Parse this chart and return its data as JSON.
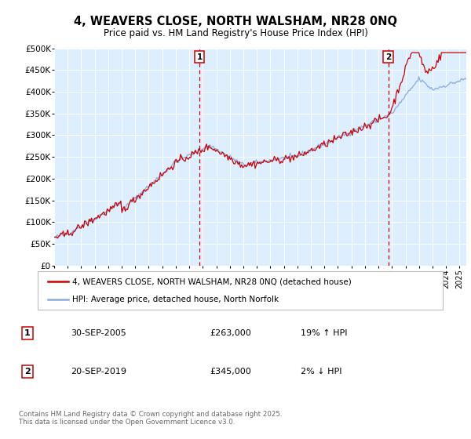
{
  "title": "4, WEAVERS CLOSE, NORTH WALSHAM, NR28 0NQ",
  "subtitle": "Price paid vs. HM Land Registry's House Price Index (HPI)",
  "legend_line1": "4, WEAVERS CLOSE, NORTH WALSHAM, NR28 0NQ (detached house)",
  "legend_line2": "HPI: Average price, detached house, North Norfolk",
  "marker1_date": "30-SEP-2005",
  "marker1_price": "£263,000",
  "marker1_hpi": "19% ↑ HPI",
  "marker1_x": 2005.75,
  "marker2_date": "20-SEP-2019",
  "marker2_price": "£345,000",
  "marker2_hpi": "2% ↓ HPI",
  "marker2_x": 2019.72,
  "footer": "Contains HM Land Registry data © Crown copyright and database right 2025.\nThis data is licensed under the Open Government Licence v3.0.",
  "background_color": "#ddeeff",
  "red_color": "#cc0000",
  "blue_color": "#88aadd",
  "ylim_min": 0,
  "ylim_max": 500000,
  "xlim_min": 1995.0,
  "xlim_max": 2025.5
}
